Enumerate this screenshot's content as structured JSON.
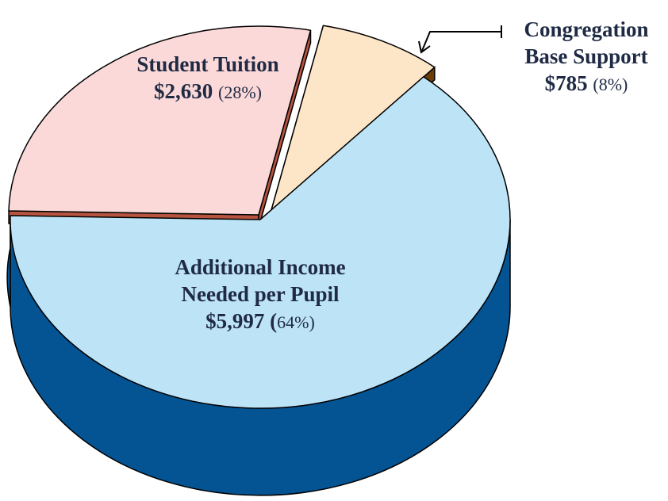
{
  "chart_data": {
    "type": "pie",
    "style": "3d-exploded",
    "slices": [
      {
        "label_lines": [
          "Additional Income",
          "Needed per Pupil"
        ],
        "value_text": "$5,997",
        "percent_text": "64%",
        "value": 5997,
        "percent": 64,
        "color": "#bde3f7",
        "side_color": "#045494"
      },
      {
        "label_lines": [
          "Student Tuition"
        ],
        "value_text": "$2,630",
        "percent_text": "28%",
        "value": 2630,
        "percent": 28,
        "color": "#fcd9d9",
        "side_color": "#b7543f"
      },
      {
        "label_lines": [
          "Congregation",
          "Base Support"
        ],
        "value_text": "$785",
        "percent_text": "8%",
        "value": 785,
        "percent": 8,
        "color": "#fde5c7",
        "side_color": "#6b3c06"
      }
    ]
  }
}
